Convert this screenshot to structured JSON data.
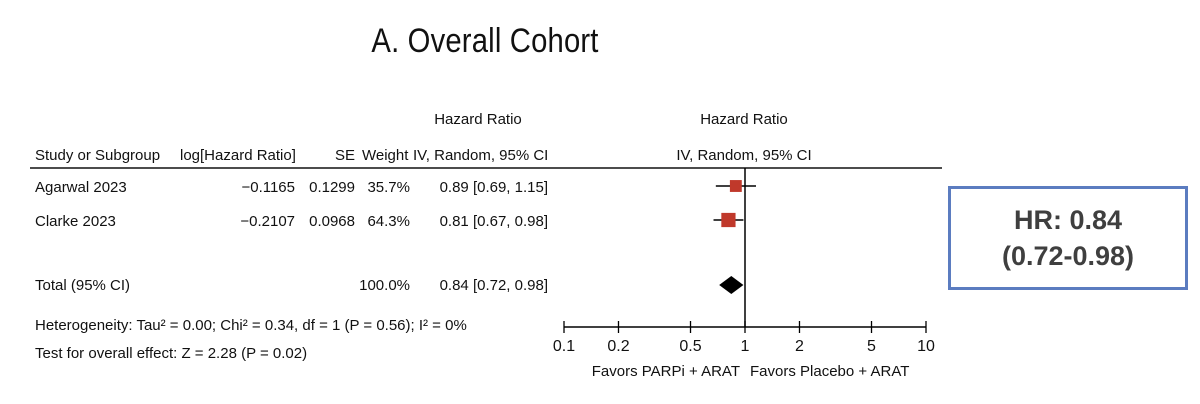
{
  "title": "A. Overall Cohort",
  "headers": {
    "study": "Study or Subgroup",
    "loghr": "log[Hazard Ratio]",
    "se": "SE",
    "weight": "Weight",
    "hr_top": "Hazard Ratio",
    "hr_method": "IV, Random, 95% CI",
    "plot_top": "Hazard Ratio",
    "plot_method": "IV, Random, 95% CI"
  },
  "chart_data": {
    "type": "forest",
    "scale": "log",
    "xlim": [
      0.1,
      10
    ],
    "ticks": [
      {
        "value": 0.1,
        "label": "0.1"
      },
      {
        "value": 0.2,
        "label": "0.2"
      },
      {
        "value": 0.5,
        "label": "0.5"
      },
      {
        "value": 1,
        "label": "1"
      },
      {
        "value": 2,
        "label": "2"
      },
      {
        "value": 5,
        "label": "5"
      },
      {
        "value": 10,
        "label": "10"
      }
    ],
    "studies": [
      {
        "name": "Agarwal 2023",
        "loghr": "−0.1165",
        "se": "0.1299",
        "weight_label": "35.7%",
        "weight": 35.7,
        "ci_label": "0.89 [0.69, 1.15]",
        "hr": 0.89,
        "lower": 0.69,
        "upper": 1.15
      },
      {
        "name": "Clarke 2023",
        "loghr": "−0.2107",
        "se": "0.0968",
        "weight_label": "64.3%",
        "weight": 64.3,
        "ci_label": "0.81 [0.67, 0.98]",
        "hr": 0.81,
        "lower": 0.67,
        "upper": 0.98
      }
    ],
    "total": {
      "name": "Total (95% CI)",
      "weight_label": "100.0%",
      "ci_label": "0.84 [0.72, 0.98]",
      "hr": 0.84,
      "lower": 0.72,
      "upper": 0.98
    },
    "heterogeneity": "Heterogeneity: Tau² = 0.00; Chi² = 0.34, df = 1 (P = 0.56); I² = 0%",
    "overall_effect": "Test for overall effect: Z = 2.28 (P = 0.02)",
    "favors_left": "Favors PARPi + ARAT",
    "favors_right": "Favors Placebo + ARAT",
    "colors": {
      "study_marker": "#c0392b",
      "diamond": "#000000",
      "lines": "#000000"
    }
  },
  "hr_box": {
    "line1": "HR: 0.84",
    "line2": "(0.72-0.98)",
    "border_color": "#5b7cc0"
  }
}
